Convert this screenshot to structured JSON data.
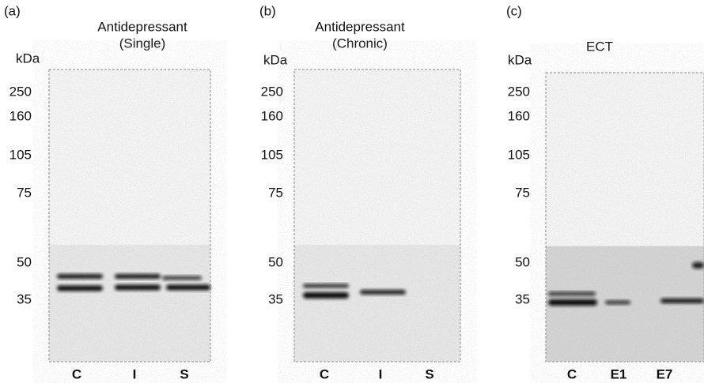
{
  "panels": [
    {
      "label": "(a)",
      "title": [
        "Antidepressant",
        "(Single)"
      ],
      "unit": "kDa",
      "markers": [
        "250",
        "160",
        "105",
        "75",
        "50",
        "35"
      ],
      "lanes": [
        "C",
        "I",
        "S"
      ]
    },
    {
      "label": "(b)",
      "title": [
        "Antidepressant",
        "(Chronic)"
      ],
      "unit": "kDa",
      "markers": [
        "250",
        "160",
        "105",
        "75",
        "50",
        "35"
      ],
      "lanes": [
        "C",
        "I",
        "S"
      ]
    },
    {
      "label": "(c)",
      "title": [
        "ECT"
      ],
      "unit": "kDa",
      "markers": [
        "250",
        "160",
        "105",
        "75",
        "50",
        "35"
      ],
      "lanes": [
        "C",
        "E1",
        "E7"
      ]
    }
  ]
}
